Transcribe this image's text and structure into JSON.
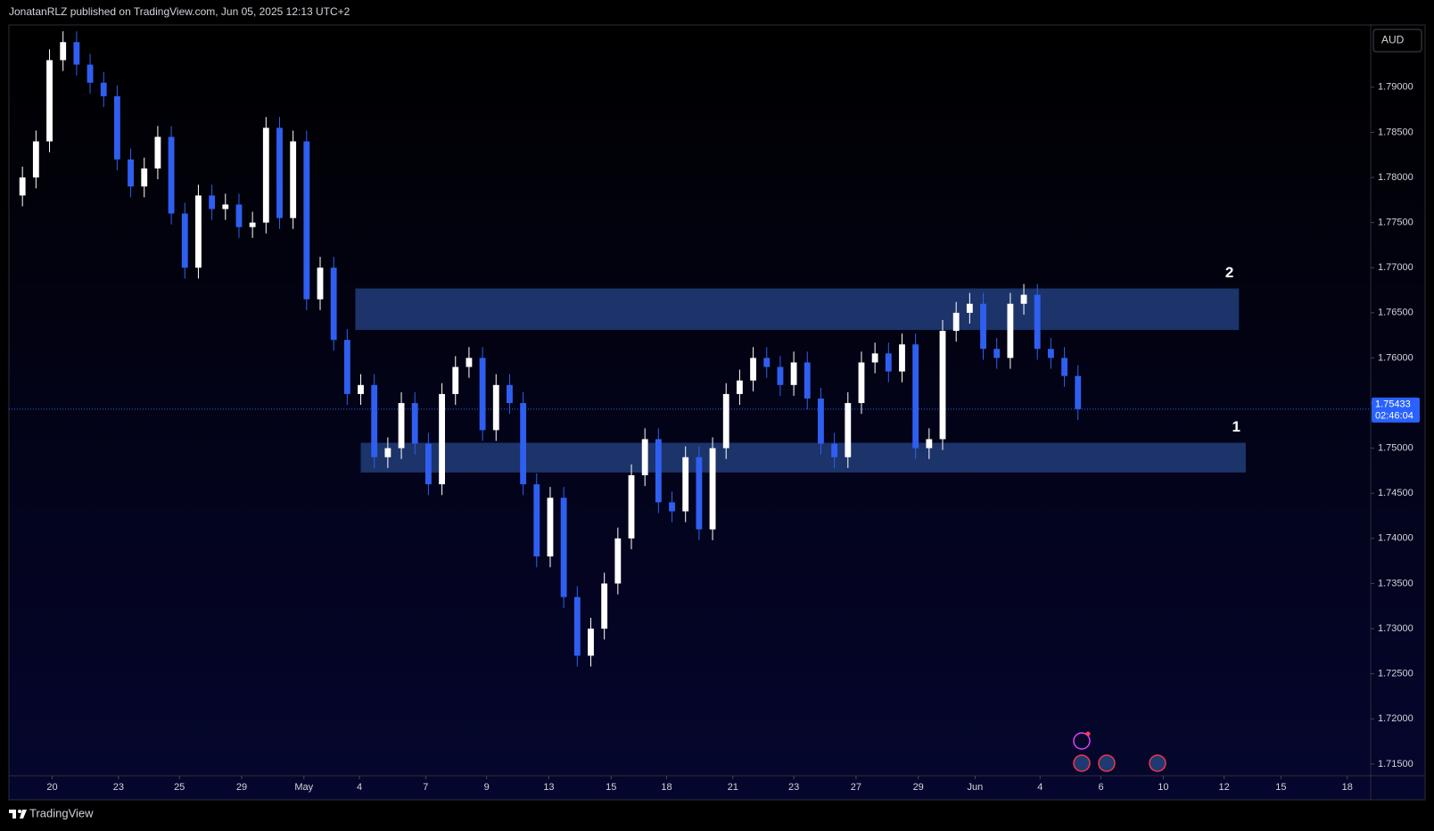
{
  "header": {
    "text": "JonatanRLZ published on TradingView.com, Jun 05, 2025 12:13 UTC+2"
  },
  "chart_data": {
    "type": "candlestick",
    "currency": "AUD",
    "x": [
      1,
      2,
      3,
      4,
      5,
      6,
      7,
      8,
      9,
      10,
      11,
      12,
      13,
      14,
      15,
      16,
      17,
      18,
      19,
      20,
      21,
      22,
      23,
      24,
      25,
      26,
      27,
      28,
      29,
      30,
      31,
      32,
      33,
      34,
      35,
      36,
      37,
      38,
      39,
      40,
      41,
      42,
      43,
      44,
      45,
      46,
      47,
      48,
      49,
      50,
      51,
      52,
      53,
      54,
      55,
      56,
      57,
      58,
      59,
      60,
      61,
      62,
      63,
      64,
      65,
      66,
      67,
      68,
      69,
      70,
      71,
      72,
      73,
      74,
      75,
      76,
      77,
      78,
      79
    ],
    "open": [
      1.778,
      1.78,
      1.784,
      1.793,
      1.795,
      1.7925,
      1.7905,
      1.789,
      1.782,
      1.779,
      1.781,
      1.7845,
      1.776,
      1.77,
      1.778,
      1.7765,
      1.777,
      1.7745,
      1.775,
      1.7855,
      1.7755,
      1.784,
      1.7665,
      1.77,
      1.762,
      1.756,
      1.757,
      1.749,
      1.75,
      1.755,
      1.7505,
      1.746,
      1.756,
      1.759,
      1.76,
      1.752,
      1.757,
      1.755,
      1.746,
      1.738,
      1.7445,
      1.7335,
      1.727,
      1.73,
      1.735,
      1.74,
      1.747,
      1.751,
      1.744,
      1.743,
      1.749,
      1.741,
      1.75,
      1.756,
      1.7575,
      1.76,
      1.759,
      1.757,
      1.7595,
      1.7555,
      1.7505,
      1.749,
      1.755,
      1.7595,
      1.7605,
      1.7585,
      1.7615,
      1.75,
      1.751,
      1.763,
      1.765,
      1.766,
      1.761,
      1.76,
      1.766,
      1.767,
      1.761,
      1.76,
      1.758
    ],
    "high": [
      1.7812,
      1.7852,
      1.7942,
      1.7962,
      1.7962,
      1.7937,
      1.7917,
      1.7902,
      1.7832,
      1.7822,
      1.7857,
      1.7857,
      1.7772,
      1.7792,
      1.7792,
      1.7782,
      1.7782,
      1.7762,
      1.7867,
      1.7867,
      1.7852,
      1.7852,
      1.7712,
      1.7712,
      1.7632,
      1.7582,
      1.7582,
      1.7512,
      1.7562,
      1.7562,
      1.7517,
      1.7572,
      1.7602,
      1.7612,
      1.7612,
      1.7582,
      1.7582,
      1.7562,
      1.7472,
      1.7457,
      1.7457,
      1.7347,
      1.7312,
      1.7362,
      1.7412,
      1.7482,
      1.7522,
      1.7522,
      1.7452,
      1.7502,
      1.7502,
      1.7512,
      1.7572,
      1.7587,
      1.7612,
      1.7612,
      1.7602,
      1.7607,
      1.7607,
      1.7567,
      1.7517,
      1.7562,
      1.7607,
      1.7617,
      1.7617,
      1.7627,
      1.7627,
      1.7522,
      1.7642,
      1.7662,
      1.7672,
      1.7672,
      1.7622,
      1.7672,
      1.7682,
      1.7682,
      1.7622,
      1.7612,
      1.7592
    ],
    "low": [
      1.7768,
      1.7788,
      1.7828,
      1.7918,
      1.7913,
      1.7893,
      1.7878,
      1.7808,
      1.7778,
      1.7778,
      1.7798,
      1.7748,
      1.7688,
      1.7688,
      1.7753,
      1.7753,
      1.7733,
      1.7733,
      1.7738,
      1.7743,
      1.7743,
      1.7653,
      1.7653,
      1.7608,
      1.7548,
      1.7548,
      1.7478,
      1.7478,
      1.7488,
      1.7493,
      1.7448,
      1.7448,
      1.7548,
      1.7578,
      1.7508,
      1.7508,
      1.7538,
      1.7448,
      1.7368,
      1.7368,
      1.7323,
      1.7258,
      1.7258,
      1.7288,
      1.7338,
      1.7388,
      1.7458,
      1.7428,
      1.7418,
      1.7418,
      1.7398,
      1.7398,
      1.7488,
      1.7548,
      1.7563,
      1.7578,
      1.7558,
      1.7558,
      1.7543,
      1.7493,
      1.7478,
      1.7478,
      1.7538,
      1.7583,
      1.7573,
      1.7573,
      1.7488,
      1.7488,
      1.7498,
      1.7618,
      1.7638,
      1.7598,
      1.7588,
      1.7588,
      1.7648,
      1.7598,
      1.7588,
      1.7568,
      1.75313
    ],
    "close": [
      1.78,
      1.784,
      1.793,
      1.795,
      1.7925,
      1.7905,
      1.789,
      1.782,
      1.779,
      1.781,
      1.7845,
      1.776,
      1.77,
      1.778,
      1.7765,
      1.777,
      1.7745,
      1.775,
      1.7855,
      1.7755,
      1.784,
      1.7665,
      1.77,
      1.762,
      1.756,
      1.757,
      1.749,
      1.75,
      1.755,
      1.7505,
      1.746,
      1.756,
      1.759,
      1.76,
      1.752,
      1.757,
      1.755,
      1.746,
      1.738,
      1.7445,
      1.7335,
      1.727,
      1.73,
      1.735,
      1.74,
      1.747,
      1.751,
      1.744,
      1.743,
      1.749,
      1.741,
      1.75,
      1.756,
      1.7575,
      1.76,
      1.759,
      1.757,
      1.7595,
      1.7555,
      1.7505,
      1.749,
      1.755,
      1.7595,
      1.7605,
      1.7585,
      1.7615,
      1.75,
      1.751,
      1.763,
      1.765,
      1.766,
      1.761,
      1.76,
      1.766,
      1.767,
      1.761,
      1.76,
      1.758,
      1.75433
    ],
    "up_color": "#ffffff",
    "down_color": "#2f5ff0",
    "xlim": [
      0,
      100.5
    ],
    "ylim": [
      1.7137,
      1.7969
    ],
    "xticks": [
      {
        "value": 3.2,
        "label": "20"
      },
      {
        "value": 8.1,
        "label": "23"
      },
      {
        "value": 12.6,
        "label": "25"
      },
      {
        "value": 17.2,
        "label": "29"
      },
      {
        "value": 21.8,
        "label": "May"
      },
      {
        "value": 25.9,
        "label": "4"
      },
      {
        "value": 30.8,
        "label": "7"
      },
      {
        "value": 35.3,
        "label": "9"
      },
      {
        "value": 39.9,
        "label": "13"
      },
      {
        "value": 44.5,
        "label": "15"
      },
      {
        "value": 48.6,
        "label": "18"
      },
      {
        "value": 53.5,
        "label": "21"
      },
      {
        "value": 58.0,
        "label": "23"
      },
      {
        "value": 62.6,
        "label": "27"
      },
      {
        "value": 67.2,
        "label": "29"
      },
      {
        "value": 71.4,
        "label": "Jun"
      },
      {
        "value": 76.2,
        "label": "4"
      },
      {
        "value": 80.7,
        "label": "6"
      },
      {
        "value": 85.3,
        "label": "10"
      },
      {
        "value": 89.8,
        "label": "12"
      },
      {
        "value": 94.0,
        "label": "15"
      },
      {
        "value": 98.9,
        "label": "18"
      }
    ],
    "yticks": [
      {
        "value": 1.715,
        "label": "1.71500"
      },
      {
        "value": 1.72,
        "label": "1.72000"
      },
      {
        "value": 1.725,
        "label": "1.72500"
      },
      {
        "value": 1.73,
        "label": "1.73000"
      },
      {
        "value": 1.735,
        "label": "1.73500"
      },
      {
        "value": 1.74,
        "label": "1.74000"
      },
      {
        "value": 1.745,
        "label": "1.74500"
      },
      {
        "value": 1.75,
        "label": "1.75000"
      },
      {
        "value": 1.755,
        "label": "1.75500"
      },
      {
        "value": 1.76,
        "label": "1.76000"
      },
      {
        "value": 1.765,
        "label": "1.76500"
      },
      {
        "value": 1.77,
        "label": "1.77000"
      },
      {
        "value": 1.775,
        "label": "1.77500"
      },
      {
        "value": 1.78,
        "label": "1.78000"
      },
      {
        "value": 1.785,
        "label": "1.78500"
      },
      {
        "value": 1.79,
        "label": "1.79000"
      }
    ],
    "last_price": 1.75433,
    "countdown": "02:46:04",
    "price_color": "#2962ff",
    "zones": [
      {
        "label": "2",
        "from": 25.6,
        "to": 90.9,
        "low": 1.7631,
        "high": 1.7677,
        "color": "#1f3a73"
      },
      {
        "label": "1",
        "from": 26.0,
        "to": 91.4,
        "low": 1.7473,
        "high": 1.7506,
        "color": "#1f3a73"
      }
    ]
  },
  "footer": {
    "brand": "TradingView"
  }
}
